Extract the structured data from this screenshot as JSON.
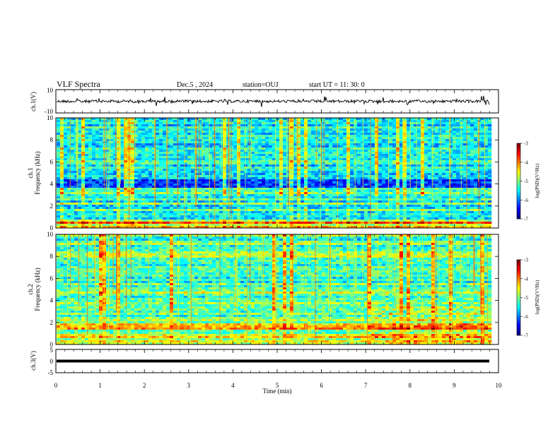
{
  "header": {
    "title": "VLF Spectra",
    "date": "Dec.5  , 2024",
    "station": "station=OUJ",
    "start": "start  UT  =   11: 30: 0"
  },
  "chart_data": [
    {
      "type": "line",
      "id": "ch1-waveform",
      "ylabel": "ch.1(V)",
      "ylim": [
        -10,
        10
      ],
      "yticks": [
        "10",
        "-10"
      ],
      "x_range_min": [
        0,
        9.8
      ],
      "baseline_value": 0,
      "color": "#000000"
    },
    {
      "type": "heatmap",
      "id": "ch1-spectrogram",
      "ylabel_line1": "ch.1",
      "ylabel_line2": "Frequency  (kHz)",
      "ylim": [
        0,
        10
      ],
      "yticks": [
        "0",
        "2",
        "4",
        "6",
        "8",
        "10"
      ],
      "x_range_min": [
        0,
        9.8
      ],
      "colorbar": {
        "label": "log(PSD)(V²/Hz)",
        "ticks": [
          "-3",
          "-4",
          "-5",
          "-6",
          "-7"
        ],
        "range": [
          -7,
          -3
        ]
      }
    },
    {
      "type": "heatmap",
      "id": "ch2-spectrogram",
      "ylabel_line1": "ch.2",
      "ylabel_line2": "Frequency  (kHz)",
      "ylim": [
        0,
        10
      ],
      "yticks": [
        "0",
        "2",
        "4",
        "6",
        "8",
        "10"
      ],
      "x_range_min": [
        0,
        9.8
      ],
      "colorbar": {
        "label": "log(PSD)(V²/Hz)",
        "ticks": [
          "-3",
          "-4",
          "-5",
          "-6",
          "-7"
        ],
        "range": [
          -7,
          -3
        ]
      }
    },
    {
      "type": "line",
      "id": "ch3-waveform",
      "ylabel": "ch.3(V)",
      "ylim": [
        -5,
        5
      ],
      "yticks": [
        "5",
        "0",
        "-5"
      ],
      "x_range_min": [
        0,
        9.8
      ],
      "baseline_value": 0,
      "color": "#000000"
    }
  ],
  "xaxis": {
    "label": "Time  (min)",
    "ticks": [
      "0",
      "1",
      "2",
      "3",
      "4",
      "5",
      "6",
      "7",
      "8",
      "9",
      "10"
    ],
    "xlim": [
      0,
      10
    ]
  }
}
